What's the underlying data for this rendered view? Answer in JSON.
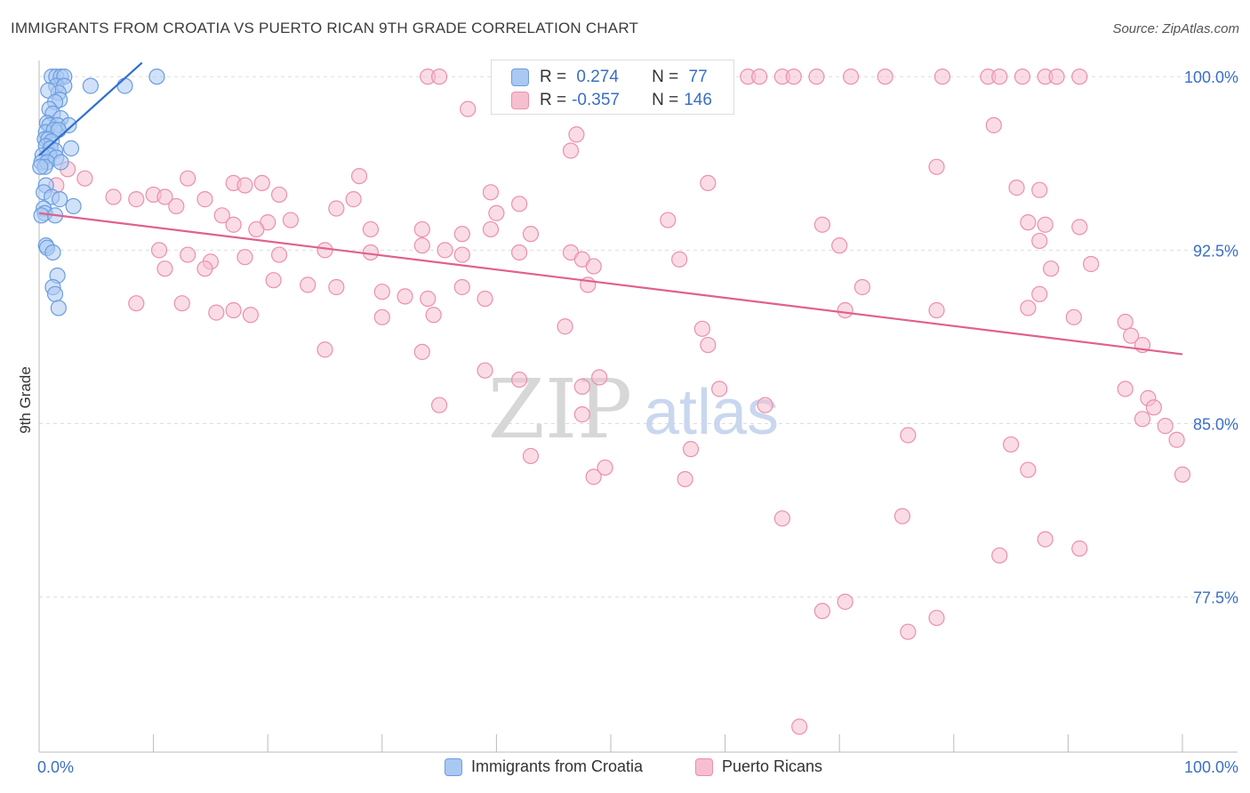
{
  "title": "IMMIGRANTS FROM CROATIA VS PUERTO RICAN 9TH GRADE CORRELATION CHART",
  "source": "Source: ZipAtlas.com",
  "watermark": {
    "zip": "ZIP",
    "atlas": "atlas"
  },
  "colors": {
    "blue_fill": "#a9c8f2",
    "blue_stroke": "#6a9de0",
    "blue_line": "#2f6fd0",
    "pink_fill": "#f6bfd0",
    "pink_stroke": "#eb8fae",
    "pink_line": "#e0608e",
    "axis_label": "#3a6fc4",
    "grid": "#dddddd"
  },
  "stats": {
    "rows": [
      {
        "r_label": "R =",
        "r_value": " 0.274",
        "n_label": "N =",
        "n_value": " 77",
        "series": "blue"
      },
      {
        "r_label": "R =",
        "r_value": "-0.357",
        "n_label": "N =",
        "n_value": "146",
        "series": "pink"
      }
    ]
  },
  "chart_data": {
    "type": "scatter",
    "ylabel": "9th Grade",
    "x_tick_labels": [
      "0.0%",
      "100.0%"
    ],
    "y_tick_labels": [
      "100.0%",
      "92.5%",
      "85.0%",
      "77.5%"
    ],
    "y_ticks": [
      100.0,
      92.5,
      85.0,
      77.5
    ],
    "xlim": [
      0,
      100
    ],
    "ylim": [
      70.8,
      100.7
    ],
    "grid": true,
    "series": [
      {
        "name": "Immigrants from Croatia",
        "color": "blue",
        "trend": {
          "x": [
            0,
            9
          ],
          "y": [
            96.6,
            100.6
          ]
        },
        "points": [
          [
            1.1,
            100
          ],
          [
            1.5,
            100
          ],
          [
            1.9,
            100
          ],
          [
            2.2,
            100
          ],
          [
            1.5,
            99.6
          ],
          [
            2.2,
            99.6
          ],
          [
            1.7,
            99.3
          ],
          [
            0.8,
            99.4
          ],
          [
            1.8,
            99.0
          ],
          [
            1.4,
            98.9
          ],
          [
            0.9,
            98.6
          ],
          [
            1.2,
            98.4
          ],
          [
            1.9,
            98.2
          ],
          [
            0.7,
            98.0
          ],
          [
            0.9,
            97.9
          ],
          [
            1.6,
            97.9
          ],
          [
            2.6,
            97.9
          ],
          [
            0.6,
            97.6
          ],
          [
            1.3,
            97.7
          ],
          [
            1.7,
            97.7
          ],
          [
            0.5,
            97.3
          ],
          [
            0.8,
            97.3
          ],
          [
            1.1,
            97.2
          ],
          [
            0.6,
            97.0
          ],
          [
            1.0,
            96.9
          ],
          [
            1.4,
            96.8
          ],
          [
            2.8,
            96.9
          ],
          [
            0.3,
            96.6
          ],
          [
            0.9,
            96.6
          ],
          [
            1.5,
            96.5
          ],
          [
            0.2,
            96.3
          ],
          [
            0.7,
            96.3
          ],
          [
            1.9,
            96.3
          ],
          [
            0.5,
            96.1
          ],
          [
            0.1,
            96.1
          ],
          [
            0.6,
            95.3
          ],
          [
            0.4,
            95.0
          ],
          [
            1.1,
            94.8
          ],
          [
            1.8,
            94.7
          ],
          [
            3.0,
            94.4
          ],
          [
            0.4,
            94.3
          ],
          [
            0.5,
            94.1
          ],
          [
            0.2,
            94.0
          ],
          [
            1.4,
            94.0
          ],
          [
            0.6,
            92.7
          ],
          [
            0.7,
            92.6
          ],
          [
            1.2,
            92.4
          ],
          [
            1.6,
            91.4
          ],
          [
            1.2,
            90.9
          ],
          [
            1.4,
            90.6
          ],
          [
            1.7,
            90.0
          ],
          [
            4.5,
            99.6
          ],
          [
            7.5,
            99.6
          ],
          [
            10.3,
            100
          ]
        ]
      },
      {
        "name": "Puerto Ricans",
        "color": "pink",
        "trend": {
          "x": [
            0,
            100
          ],
          "y": [
            94.1,
            88.0
          ]
        },
        "points": [
          [
            34,
            100
          ],
          [
            35,
            100
          ],
          [
            48,
            100
          ],
          [
            55,
            100
          ],
          [
            62,
            100
          ],
          [
            63,
            100
          ],
          [
            65,
            100
          ],
          [
            66,
            100
          ],
          [
            68,
            100
          ],
          [
            71,
            100
          ],
          [
            74,
            100
          ],
          [
            79,
            100
          ],
          [
            83,
            100
          ],
          [
            84,
            100
          ],
          [
            86,
            100
          ],
          [
            88,
            100
          ],
          [
            89,
            100
          ],
          [
            91,
            100
          ],
          [
            37.5,
            98.6
          ],
          [
            47,
            97.5
          ],
          [
            46.5,
            96.8
          ],
          [
            83.5,
            97.9
          ],
          [
            78.5,
            96.1
          ],
          [
            58.5,
            95.4
          ],
          [
            85.5,
            95.2
          ],
          [
            87.5,
            95.1
          ],
          [
            13,
            95.6
          ],
          [
            17,
            95.4
          ],
          [
            18,
            95.3
          ],
          [
            19.5,
            95.4
          ],
          [
            28,
            95.7
          ],
          [
            1.5,
            95.3
          ],
          [
            2.5,
            96.0
          ],
          [
            4,
            95.6
          ],
          [
            6.5,
            94.8
          ],
          [
            8.5,
            94.7
          ],
          [
            10,
            94.9
          ],
          [
            11,
            94.8
          ],
          [
            21,
            94.9
          ],
          [
            26,
            94.3
          ],
          [
            27.5,
            94.7
          ],
          [
            39.5,
            95.0
          ],
          [
            42,
            94.5
          ],
          [
            40,
            94.1
          ],
          [
            12,
            94.4
          ],
          [
            14.5,
            94.7
          ],
          [
            16,
            94.0
          ],
          [
            20,
            93.7
          ],
          [
            17,
            93.6
          ],
          [
            19,
            93.4
          ],
          [
            22,
            93.8
          ],
          [
            29,
            93.4
          ],
          [
            33.5,
            93.4
          ],
          [
            37,
            93.2
          ],
          [
            39.5,
            93.4
          ],
          [
            43,
            93.2
          ],
          [
            55,
            93.8
          ],
          [
            68.5,
            93.6
          ],
          [
            70,
            92.7
          ],
          [
            86.5,
            93.7
          ],
          [
            87.5,
            92.9
          ],
          [
            88,
            93.6
          ],
          [
            91,
            93.5
          ],
          [
            10.5,
            92.5
          ],
          [
            13,
            92.3
          ],
          [
            15,
            92.0
          ],
          [
            18,
            92.2
          ],
          [
            21,
            92.3
          ],
          [
            25,
            92.5
          ],
          [
            29,
            92.4
          ],
          [
            33.5,
            92.7
          ],
          [
            35.5,
            92.5
          ],
          [
            37,
            92.3
          ],
          [
            42,
            92.4
          ],
          [
            46.5,
            92.4
          ],
          [
            47.5,
            92.1
          ],
          [
            48.5,
            91.8
          ],
          [
            56,
            92.1
          ],
          [
            88.5,
            91.7
          ],
          [
            92,
            91.9
          ],
          [
            11,
            91.7
          ],
          [
            14.5,
            91.7
          ],
          [
            20.5,
            91.2
          ],
          [
            23.5,
            91.0
          ],
          [
            26,
            90.9
          ],
          [
            30,
            90.7
          ],
          [
            32,
            90.5
          ],
          [
            34,
            90.4
          ],
          [
            37,
            90.9
          ],
          [
            39,
            90.4
          ],
          [
            48,
            91.0
          ],
          [
            72,
            90.9
          ],
          [
            87.5,
            90.6
          ],
          [
            8.5,
            90.2
          ],
          [
            12.5,
            90.2
          ],
          [
            15.5,
            89.8
          ],
          [
            17,
            89.9
          ],
          [
            18.5,
            89.7
          ],
          [
            30,
            89.6
          ],
          [
            34.5,
            89.7
          ],
          [
            46,
            89.2
          ],
          [
            70.5,
            89.9
          ],
          [
            78.5,
            89.9
          ],
          [
            86.5,
            90.0
          ],
          [
            90.5,
            89.6
          ],
          [
            95,
            89.4
          ],
          [
            95.5,
            88.8
          ],
          [
            96.5,
            88.4
          ],
          [
            25,
            88.2
          ],
          [
            33.5,
            88.1
          ],
          [
            39,
            87.3
          ],
          [
            42,
            86.9
          ],
          [
            47.5,
            86.6
          ],
          [
            49,
            87.0
          ],
          [
            58,
            89.1
          ],
          [
            58.5,
            88.4
          ],
          [
            35,
            85.8
          ],
          [
            47.5,
            85.4
          ],
          [
            43,
            83.6
          ],
          [
            48.5,
            82.7
          ],
          [
            49.5,
            83.1
          ],
          [
            56.5,
            82.6
          ],
          [
            57,
            83.9
          ],
          [
            59.5,
            86.5
          ],
          [
            63.5,
            85.8
          ],
          [
            97,
            86.1
          ],
          [
            97.5,
            85.7
          ],
          [
            98.5,
            84.9
          ],
          [
            99.5,
            84.3
          ],
          [
            76,
            84.5
          ],
          [
            75.5,
            81.0
          ],
          [
            85,
            84.1
          ],
          [
            95,
            86.5
          ],
          [
            96.5,
            85.2
          ],
          [
            86.5,
            83.0
          ],
          [
            100,
            82.8
          ],
          [
            65,
            80.9
          ],
          [
            70.5,
            77.3
          ],
          [
            88,
            80.0
          ],
          [
            91,
            79.6
          ],
          [
            84,
            79.3
          ],
          [
            68.5,
            76.9
          ],
          [
            78.5,
            76.6
          ],
          [
            76,
            76.0
          ],
          [
            66.5,
            71.9
          ]
        ]
      }
    ]
  },
  "legend": [
    {
      "label": "Immigrants from Croatia",
      "color": "blue"
    },
    {
      "label": "Puerto Ricans",
      "color": "pink"
    }
  ]
}
